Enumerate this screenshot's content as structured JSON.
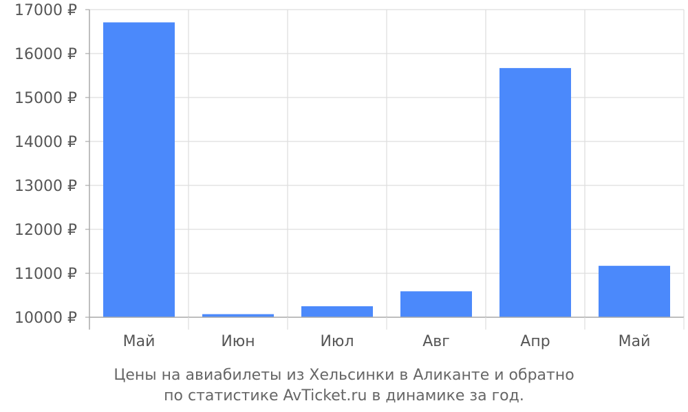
{
  "chart_data": {
    "type": "bar",
    "categories": [
      "Май",
      "Июн",
      "Июл",
      "Авг",
      "Апр",
      "Май"
    ],
    "values": [
      16710,
      10070,
      10250,
      10590,
      15670,
      11170
    ],
    "ylim": [
      10000,
      17000
    ],
    "yticks": [
      10000,
      11000,
      12000,
      13000,
      14000,
      15000,
      16000,
      17000
    ],
    "ytick_suffix": " ₽",
    "grid": true,
    "bar_color": "#4b89fb",
    "grid_color": "#dddddd",
    "axis_color": "#aaaaaa"
  },
  "caption": {
    "line1": "Цены на авиабилеты из Хельсинки в Аликанте и обратно",
    "line2": "по статистике AvTicket.ru в динамике за год."
  }
}
